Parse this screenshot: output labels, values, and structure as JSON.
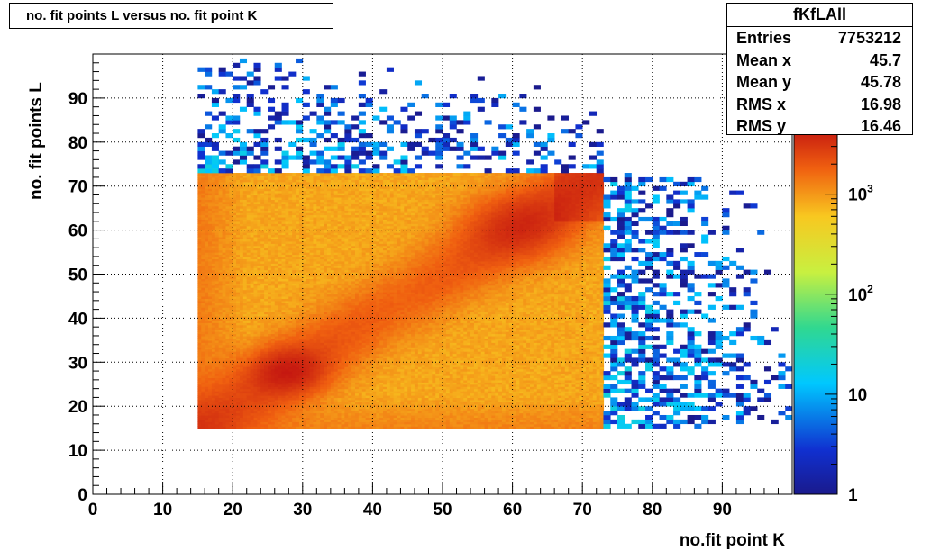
{
  "title": "no. fit points L versus no. fit point K",
  "stats": {
    "name": "fKfLAll",
    "rows": [
      {
        "label": "Entries",
        "value": "7753212"
      },
      {
        "label": "Mean x",
        "value": "45.7"
      },
      {
        "label": "Mean y",
        "value": "45.78"
      },
      {
        "label": "RMS x",
        "value": "16.98"
      },
      {
        "label": "RMS y",
        "value": "16.46"
      }
    ]
  },
  "chart_data": {
    "type": "heatmap",
    "title": "no. fit points L versus no. fit point K",
    "xlabel": "no.fit point K",
    "ylabel": "no. fit points  L",
    "xlim": [
      0,
      100
    ],
    "ylim": [
      0,
      100
    ],
    "xticks": [
      "0",
      "10",
      "20",
      "30",
      "40",
      "50",
      "60",
      "70",
      "80",
      "90"
    ],
    "yticks": [
      "0",
      "10",
      "20",
      "30",
      "40",
      "50",
      "60",
      "70",
      "80",
      "90"
    ],
    "grid": true,
    "colorscale": "log",
    "zlim": [
      1,
      5000
    ],
    "colorbar_labels": [
      {
        "value": 1,
        "text": "1"
      },
      {
        "value": 10,
        "text": "10"
      },
      {
        "value": 100,
        "base": "10",
        "exp": "2"
      },
      {
        "value": 1000,
        "base": "10",
        "exp": "3"
      }
    ],
    "dense_region": {
      "x": [
        15,
        73
      ],
      "y": [
        15,
        73
      ],
      "level_range": [
        500,
        5000
      ]
    },
    "peaks": [
      {
        "x": 28,
        "y": 28,
        "value": 5000
      },
      {
        "x": 61,
        "y": 61,
        "value": 4000
      }
    ],
    "sparse_regions": [
      {
        "x": [
          15,
          73
        ],
        "y": [
          73,
          100
        ],
        "level_range": [
          1,
          20
        ]
      },
      {
        "x": [
          73,
          100
        ],
        "y": [
          15,
          73
        ],
        "level_range": [
          1,
          20
        ]
      }
    ]
  }
}
